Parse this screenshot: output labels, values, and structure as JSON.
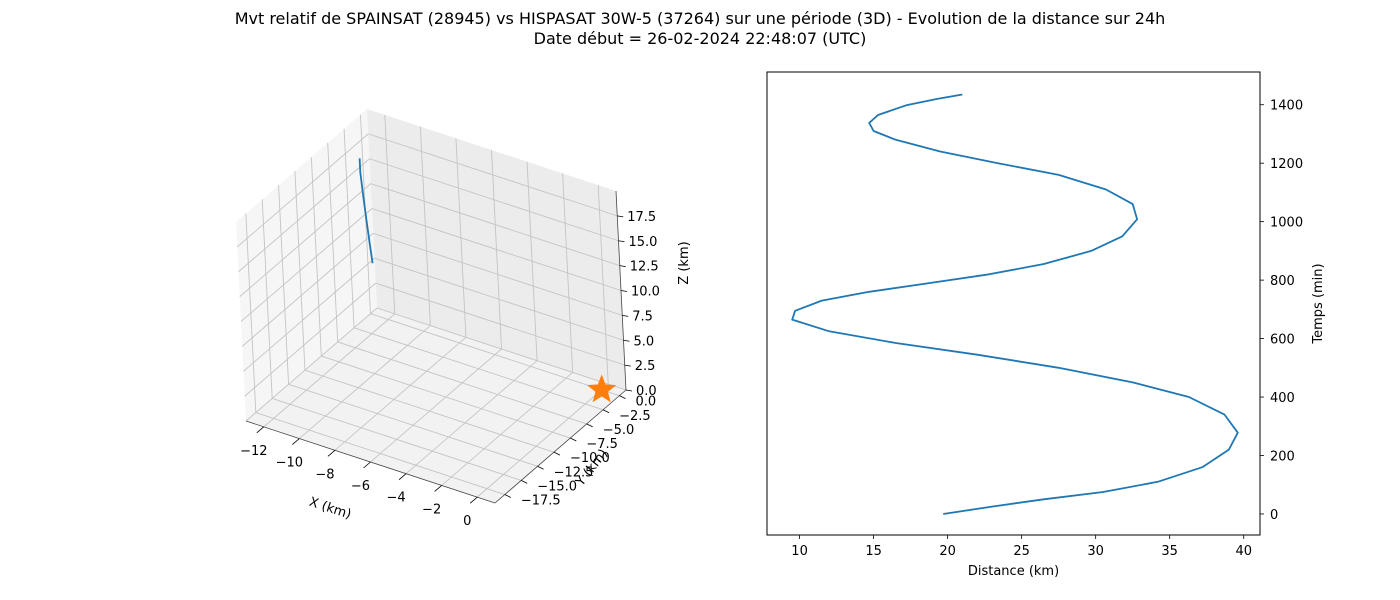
{
  "figure": {
    "title_line1": "Mvt relatif de SPAINSAT (28945) vs HISPASAT 30W-5 (37264) sur une période (3D) - Evolution de la distance sur 24h",
    "title_line2": "Date début = 26-02-2024 22:48:07 (UTC)"
  },
  "chart_data": [
    {
      "type": "line3d",
      "xlabel": "X (km)",
      "ylabel": "Y (km)",
      "zlabel": "Z (km)",
      "xlim": [
        -13,
        1
      ],
      "ylim": [
        -19,
        1
      ],
      "zlim": [
        0,
        20
      ],
      "xticks": [
        -12,
        -10,
        -8,
        -6,
        -4,
        -2,
        0
      ],
      "xtick_labels": [
        "−12",
        "−10",
        "−8",
        "−6",
        "−4",
        "−2",
        "0"
      ],
      "yticks": [
        0,
        -2.5,
        -5,
        -7.5,
        -10,
        -12.5,
        -15,
        -17.5
      ],
      "ytick_labels": [
        "0.0",
        "−2.5",
        "−5.0",
        "−7.5",
        "−10.0",
        "−12.5",
        "−15.0",
        "−17.5"
      ],
      "zticks": [
        0,
        2.5,
        5,
        7.5,
        10,
        12.5,
        15,
        17.5
      ],
      "ztick_labels": [
        "0.0",
        "2.5",
        "5.0",
        "7.5",
        "10.0",
        "12.5",
        "15.0",
        "17.5"
      ],
      "grid": true,
      "series": [
        {
          "points": [
            {
              "x": -12.2,
              "y": -2.5,
              "z": 17.5
            },
            {
              "x": -12.0,
              "y": -3.0,
              "z": 16.5
            },
            {
              "x": -11.6,
              "y": -3.8,
              "z": 15.0
            },
            {
              "x": -11.0,
              "y": -5.0,
              "z": 13.3
            },
            {
              "x": -10.5,
              "y": -6.0,
              "z": 12.0
            },
            {
              "x": -10.0,
              "y": -7.0,
              "z": 10.8
            }
          ],
          "color": "#1f77b4"
        },
        {
          "marker": "star",
          "points": [
            {
              "x": 0,
              "y": 0,
              "z": 0
            }
          ],
          "color": "#ff7f0e"
        }
      ]
    },
    {
      "type": "line",
      "xlabel": "Distance (km)",
      "ylabel": "Temps (min)",
      "xlim": [
        7.8,
        41.1
      ],
      "ylim": [
        -72,
        1512
      ],
      "xticks": [
        10,
        15,
        20,
        25,
        30,
        35,
        40
      ],
      "yticks": [
        0,
        200,
        400,
        600,
        800,
        1000,
        1200,
        1400
      ],
      "grid": false,
      "series": [
        {
          "color": "#1f77b4",
          "points": [
            [
              19.7,
              0
            ],
            [
              23.0,
              25
            ],
            [
              26.5,
              50
            ],
            [
              30.5,
              75
            ],
            [
              34.2,
              110
            ],
            [
              37.2,
              160
            ],
            [
              39.0,
              220
            ],
            [
              39.6,
              278
            ],
            [
              38.7,
              340
            ],
            [
              36.3,
              400
            ],
            [
              32.5,
              450
            ],
            [
              27.5,
              500
            ],
            [
              22.0,
              545
            ],
            [
              16.5,
              585
            ],
            [
              12.0,
              625
            ],
            [
              9.5,
              665
            ],
            [
              9.7,
              695
            ],
            [
              11.5,
              730
            ],
            [
              14.7,
              760
            ],
            [
              18.8,
              790
            ],
            [
              22.8,
              820
            ],
            [
              26.5,
              855
            ],
            [
              29.7,
              900
            ],
            [
              31.8,
              950
            ],
            [
              32.8,
              1008
            ],
            [
              32.5,
              1060
            ],
            [
              30.7,
              1110
            ],
            [
              27.5,
              1160
            ],
            [
              23.4,
              1200
            ],
            [
              19.5,
              1240
            ],
            [
              16.5,
              1280
            ],
            [
              15.0,
              1310
            ],
            [
              14.7,
              1338
            ],
            [
              15.3,
              1365
            ],
            [
              17.2,
              1398
            ],
            [
              19.3,
              1420
            ],
            [
              21.0,
              1435
            ]
          ]
        }
      ]
    }
  ]
}
